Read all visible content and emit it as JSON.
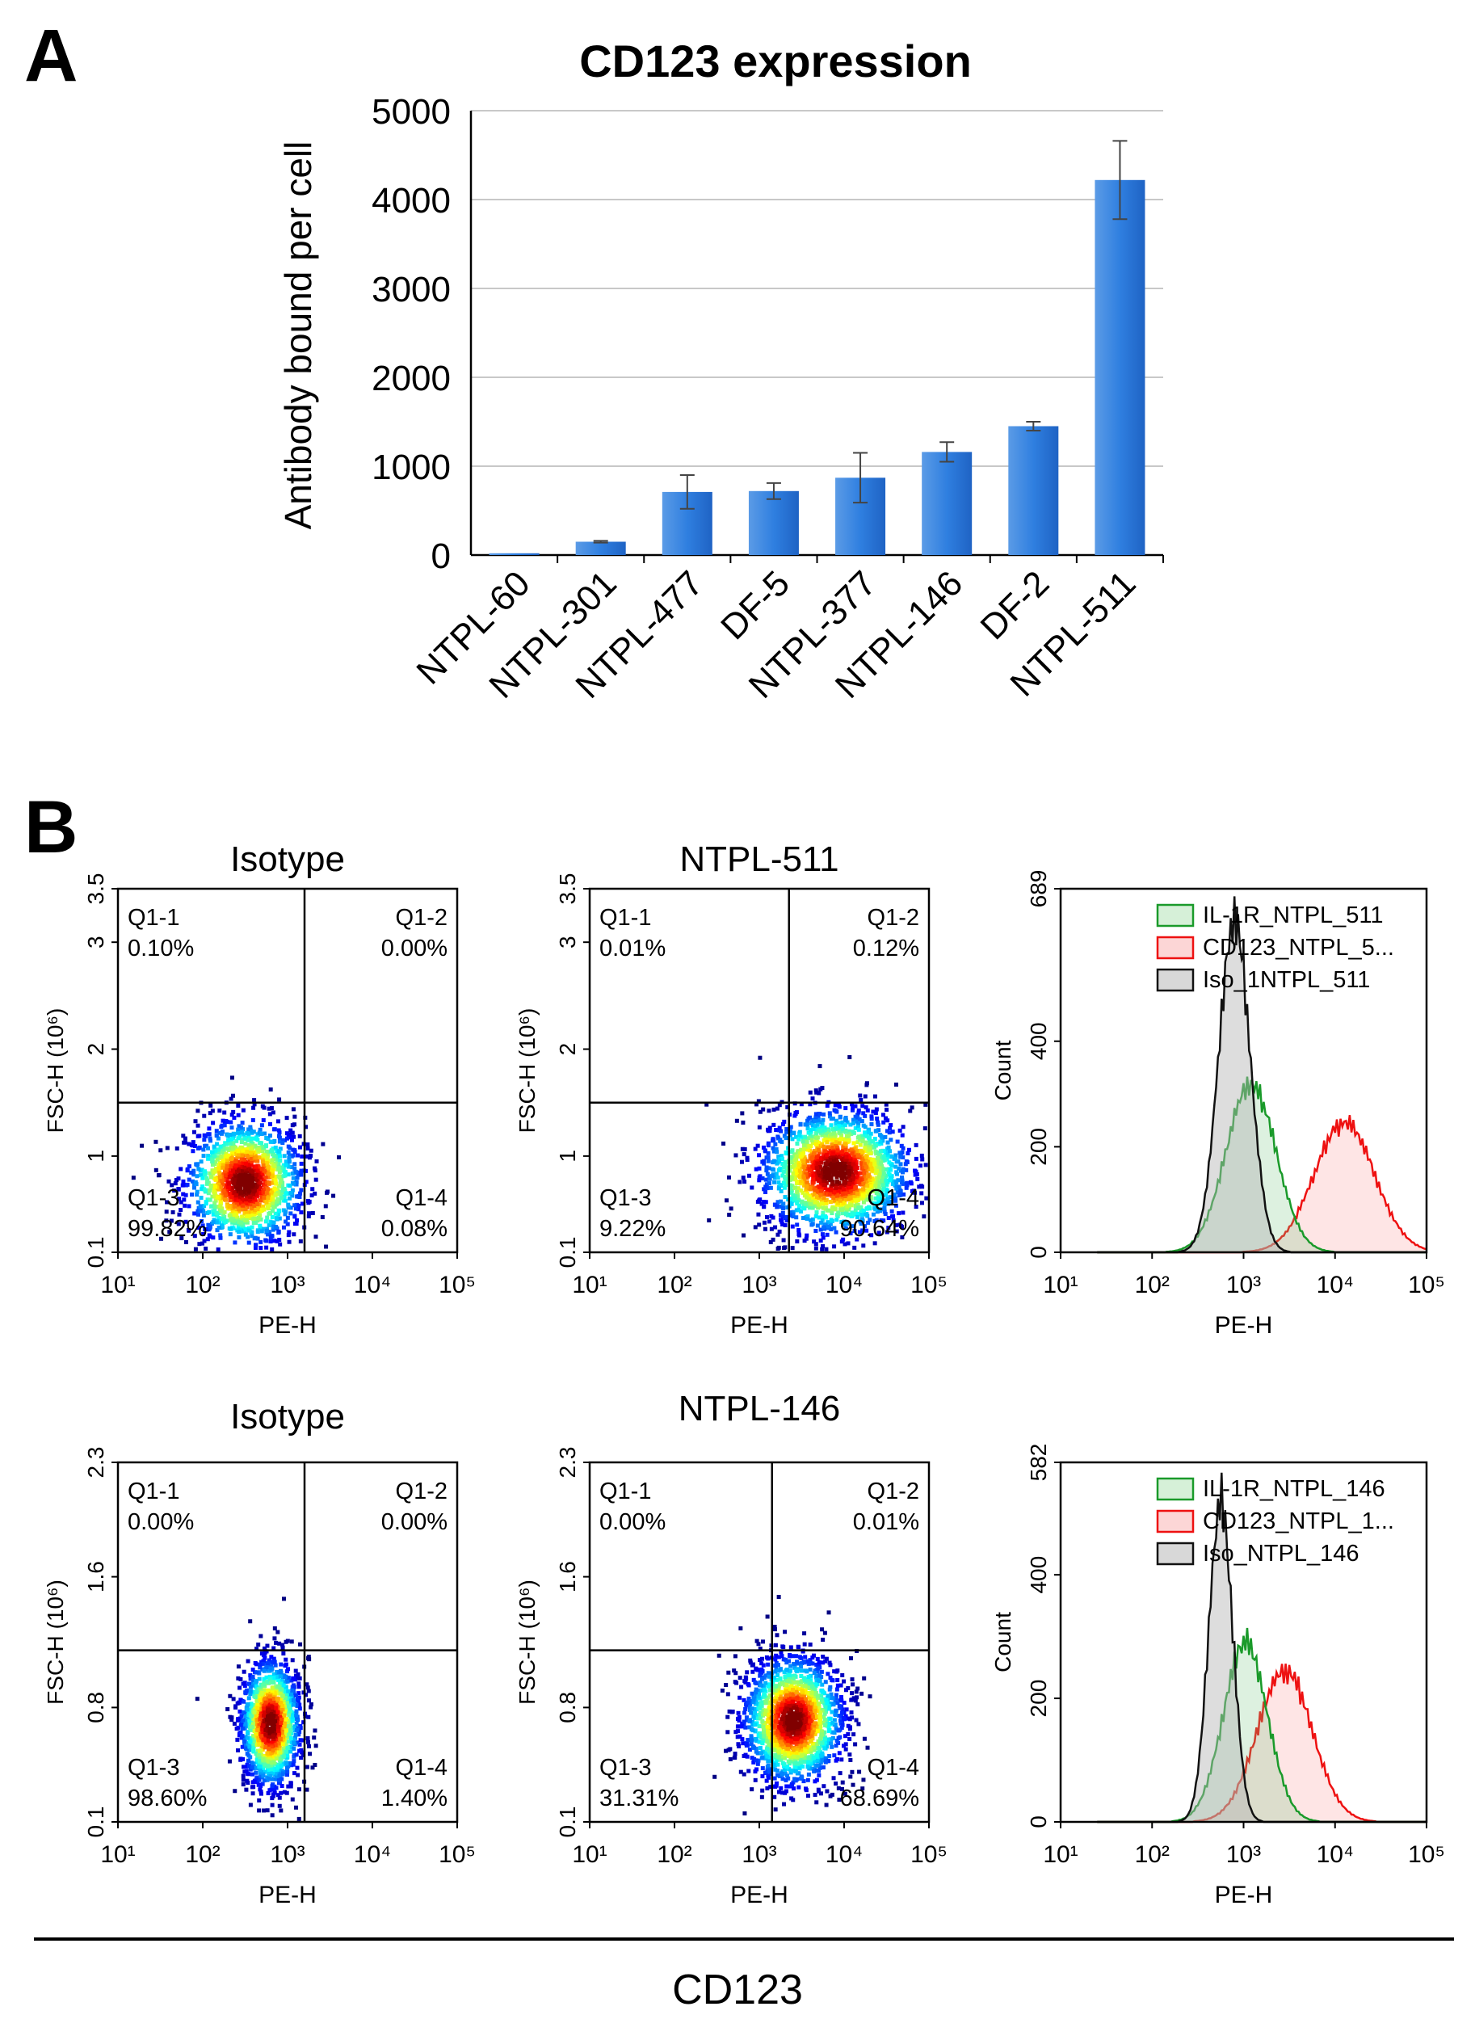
{
  "panel_a_label": "A",
  "panel_b_label": "B",
  "bottom_label": "CD123",
  "colors": {
    "bar": "#1f63c4",
    "bar_light": "#5b9be6",
    "il1r": "#1a9a2a",
    "cd123": "#ee1111",
    "iso": "#111111"
  },
  "chart_data": [
    {
      "type": "bar",
      "title": "CD123 expression",
      "xlabel": "",
      "ylabel": "Antibody bound per cell",
      "ylim": [
        0,
        5000
      ],
      "yticks": [
        "0",
        "1000",
        "2000",
        "3000",
        "4000",
        "5000"
      ],
      "categories": [
        "NTPL-60",
        "NTPL-301",
        "NTPL-477",
        "DF-5",
        "NTPL-377",
        "NTPL-146",
        "DF-2",
        "NTPL-511"
      ],
      "values": [
        20,
        150,
        710,
        720,
        870,
        1160,
        1450,
        4220
      ],
      "errors": [
        0,
        10,
        190,
        90,
        280,
        110,
        50,
        440
      ],
      "grid": true
    },
    {
      "type": "scatter",
      "title": "Isotype",
      "xlabel": "PE-H",
      "ylabel": "FSC-H (10⁶)",
      "xticks": [
        "10¹",
        "10²",
        "10³",
        "10⁴",
        "10⁵"
      ],
      "yticks": [
        "0.1",
        "1",
        "2",
        "3",
        "3.5"
      ],
      "yvals": [
        0.1,
        1,
        2,
        3,
        3.5
      ],
      "gate": {
        "x_decade": 3.2,
        "y": 1.5
      },
      "quadrants": [
        {
          "name": "Q1-1",
          "value": "0.10%"
        },
        {
          "name": "Q1-2",
          "value": "0.00%"
        },
        {
          "name": "Q1-3",
          "value": "99.82%"
        },
        {
          "name": "Q1-4",
          "value": "0.08%"
        }
      ],
      "cloud": {
        "cx_decade": 2.5,
        "cy": 0.75,
        "sx": 0.35,
        "sy": 0.3,
        "n": 1500
      }
    },
    {
      "type": "scatter",
      "title": "NTPL-511",
      "xlabel": "PE-H",
      "ylabel": "FSC-H (10⁶)",
      "xticks": [
        "10¹",
        "10²",
        "10³",
        "10⁴",
        "10⁵"
      ],
      "yticks": [
        "0.1",
        "1",
        "2",
        "3",
        "3.5"
      ],
      "yvals": [
        0.1,
        1,
        2,
        3,
        3.5
      ],
      "gate": {
        "x_decade": 3.35,
        "y": 1.5
      },
      "quadrants": [
        {
          "name": "Q1-1",
          "value": "0.01%"
        },
        {
          "name": "Q1-2",
          "value": "0.12%"
        },
        {
          "name": "Q1-3",
          "value": "9.22%"
        },
        {
          "name": "Q1-4",
          "value": "90.64%"
        }
      ],
      "cloud": {
        "cx_decade": 3.9,
        "cy": 0.85,
        "sx": 0.45,
        "sy": 0.3,
        "n": 1800
      }
    },
    {
      "type": "area",
      "title": "",
      "xlabel": "PE-H",
      "ylabel": "Count",
      "ymax": 689,
      "yticks": [
        "0",
        "200",
        "400",
        "689"
      ],
      "yvals": [
        0,
        200,
        400,
        689
      ],
      "xticks": [
        "10¹",
        "10²",
        "10³",
        "10⁴",
        "10⁵"
      ],
      "legend_position": "top-left",
      "series": [
        {
          "name": "IL-1R_NTPL_511",
          "color": "#1a9a2a",
          "peak_decade": 3.08,
          "sd": 0.27,
          "peak": 320
        },
        {
          "name": "CD123_NTPL_5...",
          "color": "#ee1111",
          "peak_decade": 4.1,
          "sd": 0.33,
          "peak": 245
        },
        {
          "name": "Iso_1NTPL_511",
          "color": "#111111",
          "peak_decade": 2.9,
          "sd": 0.17,
          "peak": 630
        }
      ]
    },
    {
      "type": "scatter",
      "title": "Isotype",
      "xlabel": "PE-H",
      "ylabel": "FSC-H (10⁶)",
      "xticks": [
        "10¹",
        "10²",
        "10³",
        "10⁴",
        "10⁵"
      ],
      "yticks": [
        "0.1",
        "0.8",
        "1.6",
        "2.3"
      ],
      "yvals": [
        0.1,
        0.8,
        1.6,
        2.3
      ],
      "gate": {
        "x_decade": 3.2,
        "y": 1.15
      },
      "quadrants": [
        {
          "name": "Q1-1",
          "value": "0.00%"
        },
        {
          "name": "Q1-2",
          "value": "0.00%"
        },
        {
          "name": "Q1-3",
          "value": "98.60%"
        },
        {
          "name": "Q1-4",
          "value": "1.40%"
        }
      ],
      "cloud": {
        "cx_decade": 2.8,
        "cy": 0.7,
        "sx": 0.18,
        "sy": 0.2,
        "n": 1400
      }
    },
    {
      "type": "scatter",
      "title": "NTPL-146",
      "xlabel": "PE-H",
      "ylabel": "FSC-H (10⁶)",
      "xticks": [
        "10¹",
        "10²",
        "10³",
        "10⁴",
        "10⁵"
      ],
      "yticks": [
        "0.1",
        "0.8",
        "1.6",
        "2.3"
      ],
      "yvals": [
        0.1,
        0.8,
        1.6,
        2.3
      ],
      "gate": {
        "x_decade": 3.15,
        "y": 1.15
      },
      "quadrants": [
        {
          "name": "Q1-1",
          "value": "0.00%"
        },
        {
          "name": "Q1-2",
          "value": "0.01%"
        },
        {
          "name": "Q1-3",
          "value": "31.31%"
        },
        {
          "name": "Q1-4",
          "value": "68.69%"
        }
      ],
      "cloud": {
        "cx_decade": 3.4,
        "cy": 0.72,
        "sx": 0.3,
        "sy": 0.2,
        "n": 1700
      }
    },
    {
      "type": "area",
      "title": "",
      "xlabel": "PE-H",
      "ylabel": "Count",
      "ymax": 582,
      "yticks": [
        "0",
        "200",
        "400",
        "582"
      ],
      "yvals": [
        0,
        200,
        400,
        582
      ],
      "xticks": [
        "10¹",
        "10²",
        "10³",
        "10⁴",
        "10⁵"
      ],
      "legend_position": "top-left",
      "series": [
        {
          "name": "IL-1R_NTPL_146",
          "color": "#1a9a2a",
          "peak_decade": 3.02,
          "sd": 0.24,
          "peak": 290
        },
        {
          "name": "CD123_NTPL_1...",
          "color": "#ee1111",
          "peak_decade": 3.45,
          "sd": 0.3,
          "peak": 245
        },
        {
          "name": "Iso_NTPL_146",
          "color": "#111111",
          "peak_decade": 2.75,
          "sd": 0.13,
          "peak": 520
        }
      ]
    }
  ]
}
